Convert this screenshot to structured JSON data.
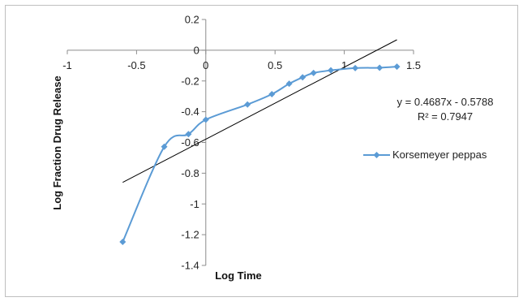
{
  "chart_data": {
    "type": "scatter",
    "title": "",
    "xlabel": "Log Time",
    "ylabel": "Log Fraction Drug Release",
    "xlim": [
      -1,
      1.5
    ],
    "ylim": [
      -1.4,
      0.2
    ],
    "xticks": [
      -1,
      -0.5,
      0,
      0.5,
      1,
      1.5
    ],
    "yticks": [
      0.2,
      0,
      -0.2,
      -0.4,
      -0.6,
      -0.8,
      -1,
      -1.2,
      -1.4
    ],
    "xtick_labels": [
      "-1",
      "-0.5",
      "0",
      "0.5",
      "1",
      "1.5"
    ],
    "ytick_labels": [
      "0.2",
      "0",
      "-0.2",
      "-0.4",
      "-0.6",
      "-0.8",
      "-1",
      "-1.2",
      "-1.4"
    ],
    "grid": false,
    "legend_position": "right",
    "series": [
      {
        "name": "Korsemeyer peppas",
        "color": "#5b9bd5",
        "marker": "diamond",
        "x": [
          -0.6,
          -0.3,
          -0.125,
          0,
          0.301,
          0.477,
          0.602,
          0.699,
          0.778,
          0.903,
          1.079,
          1.255,
          1.38
        ],
        "y": [
          -1.247,
          -0.628,
          -0.546,
          -0.452,
          -0.353,
          -0.286,
          -0.218,
          -0.176,
          -0.148,
          -0.131,
          -0.116,
          -0.114,
          -0.107
        ]
      }
    ],
    "trendline": {
      "color": "#000000",
      "slope": 0.4687,
      "intercept": -0.5788,
      "x_start": -0.6,
      "x_end": 1.38,
      "equation": "y = 0.4687x - 0.5788",
      "r_squared": "R² = 0.7947"
    }
  }
}
